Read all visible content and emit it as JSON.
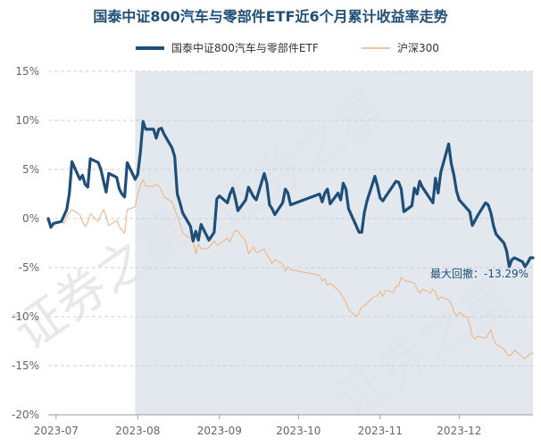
{
  "chart_data": {
    "type": "line",
    "title": "国泰中证800汽车与零部件ETF近6个月累计收益率走势",
    "xlabel": "",
    "ylabel": "",
    "y_unit": "%",
    "ylim": [
      -20,
      15
    ],
    "y_ticks": [
      15,
      10,
      5,
      0,
      -5,
      -10,
      -15,
      -20
    ],
    "y_tick_labels": [
      "15%",
      "10%",
      "5%",
      "0%",
      "-5%",
      "-10%",
      "-15%",
      "-20%"
    ],
    "x_ticks": [
      "2023-07",
      "2023-08",
      "2023-09",
      "2023-10",
      "2023-11",
      "2023-12"
    ],
    "x_range": [
      "2023-06-28",
      "2023-12-29"
    ],
    "grid": "horizontal-dashed",
    "legend_position": "top",
    "drawdown_shading": {
      "start": "2023-07-31",
      "end": "2023-12-29",
      "color": "#dde4ea"
    },
    "annotation": {
      "text": "最大回撤：-13.29%",
      "anchor_date": "2023-12-27",
      "anchor_value": -5.2
    },
    "watermark": "证券之星",
    "series": [
      {
        "name": "国泰中证800汽车与零部件ETF",
        "color": "#1f4e79",
        "line_width": 3.2,
        "points": [
          [
            "2023-06-28",
            0.0
          ],
          [
            "2023-06-29",
            -0.9
          ],
          [
            "2023-06-30",
            -0.5
          ],
          [
            "2023-07-03",
            -0.3
          ],
          [
            "2023-07-04",
            0.3
          ],
          [
            "2023-07-05",
            0.9
          ],
          [
            "2023-07-06",
            2.5
          ],
          [
            "2023-07-07",
            5.8
          ],
          [
            "2023-07-10",
            4.0
          ],
          [
            "2023-07-11",
            4.4
          ],
          [
            "2023-07-12",
            3.5
          ],
          [
            "2023-07-13",
            3.2
          ],
          [
            "2023-07-14",
            6.1
          ],
          [
            "2023-07-17",
            5.7
          ],
          [
            "2023-07-18",
            5.0
          ],
          [
            "2023-07-19",
            3.8
          ],
          [
            "2023-07-20",
            2.7
          ],
          [
            "2023-07-21",
            4.6
          ],
          [
            "2023-07-24",
            4.2
          ],
          [
            "2023-07-25",
            3.0
          ],
          [
            "2023-07-26",
            2.5
          ],
          [
            "2023-07-27",
            2.2
          ],
          [
            "2023-07-28",
            5.7
          ],
          [
            "2023-07-31",
            4.0
          ],
          [
            "2023-08-01",
            4.5
          ],
          [
            "2023-08-02",
            6.8
          ],
          [
            "2023-08-03",
            9.9
          ],
          [
            "2023-08-04",
            9.1
          ],
          [
            "2023-08-07",
            9.1
          ],
          [
            "2023-08-08",
            8.2
          ],
          [
            "2023-08-09",
            9.1
          ],
          [
            "2023-08-10",
            9.2
          ],
          [
            "2023-08-11",
            8.6
          ],
          [
            "2023-08-14",
            7.2
          ],
          [
            "2023-08-15",
            6.3
          ],
          [
            "2023-08-16",
            2.5
          ],
          [
            "2023-08-17",
            1.6
          ],
          [
            "2023-08-18",
            0.6
          ],
          [
            "2023-08-21",
            -0.8
          ],
          [
            "2023-08-22",
            -2.3
          ],
          [
            "2023-08-23",
            -1.3
          ],
          [
            "2023-08-24",
            -2.2
          ],
          [
            "2023-08-25",
            -0.6
          ],
          [
            "2023-08-28",
            -2.2
          ],
          [
            "2023-08-29",
            -1.8
          ],
          [
            "2023-08-30",
            -1.4
          ],
          [
            "2023-08-31",
            2.0
          ],
          [
            "2023-09-01",
            2.3
          ],
          [
            "2023-09-04",
            1.6
          ],
          [
            "2023-09-05",
            2.5
          ],
          [
            "2023-09-06",
            3.1
          ],
          [
            "2023-09-07",
            2.1
          ],
          [
            "2023-09-08",
            0.8
          ],
          [
            "2023-09-11",
            1.9
          ],
          [
            "2023-09-12",
            3.2
          ],
          [
            "2023-09-13",
            2.7
          ],
          [
            "2023-09-14",
            2.2
          ],
          [
            "2023-09-15",
            1.9
          ],
          [
            "2023-09-18",
            4.6
          ],
          [
            "2023-09-19",
            3.6
          ],
          [
            "2023-09-20",
            1.4
          ],
          [
            "2023-09-21",
            1.0
          ],
          [
            "2023-09-22",
            0.4
          ],
          [
            "2023-09-25",
            1.6
          ],
          [
            "2023-09-26",
            3.0
          ],
          [
            "2023-09-27",
            2.6
          ],
          [
            "2023-09-28",
            1.4
          ],
          [
            "2023-10-09",
            2.5
          ],
          [
            "2023-10-10",
            1.7
          ],
          [
            "2023-10-11",
            2.6
          ],
          [
            "2023-10-12",
            3.0
          ],
          [
            "2023-10-13",
            1.5
          ],
          [
            "2023-10-16",
            2.6
          ],
          [
            "2023-10-17",
            1.9
          ],
          [
            "2023-10-18",
            3.6
          ],
          [
            "2023-10-19",
            3.0
          ],
          [
            "2023-10-20",
            1.0
          ],
          [
            "2023-10-23",
            -0.8
          ],
          [
            "2023-10-24",
            -1.4
          ],
          [
            "2023-10-25",
            -1.4
          ],
          [
            "2023-10-26",
            0.6
          ],
          [
            "2023-10-27",
            1.8
          ],
          [
            "2023-10-30",
            4.3
          ],
          [
            "2023-10-31",
            3.3
          ],
          [
            "2023-11-01",
            2.1
          ],
          [
            "2023-11-02",
            1.8
          ],
          [
            "2023-11-03",
            2.2
          ],
          [
            "2023-11-06",
            3.4
          ],
          [
            "2023-11-07",
            3.8
          ],
          [
            "2023-11-08",
            3.7
          ],
          [
            "2023-11-09",
            3.0
          ],
          [
            "2023-11-10",
            0.7
          ],
          [
            "2023-11-13",
            1.3
          ],
          [
            "2023-11-14",
            3.1
          ],
          [
            "2023-11-15",
            2.5
          ],
          [
            "2023-11-16",
            3.8
          ],
          [
            "2023-11-17",
            3.2
          ],
          [
            "2023-11-20",
            2.0
          ],
          [
            "2023-11-21",
            1.6
          ],
          [
            "2023-11-22",
            4.1
          ],
          [
            "2023-11-23",
            2.6
          ],
          [
            "2023-11-24",
            4.7
          ],
          [
            "2023-11-27",
            7.6
          ],
          [
            "2023-11-28",
            5.6
          ],
          [
            "2023-11-29",
            4.4
          ],
          [
            "2023-11-30",
            2.8
          ],
          [
            "2023-12-01",
            1.9
          ],
          [
            "2023-12-04",
            1.0
          ],
          [
            "2023-12-05",
            0.7
          ],
          [
            "2023-12-06",
            -0.7
          ],
          [
            "2023-12-07",
            -0.2
          ],
          [
            "2023-12-08",
            0.3
          ],
          [
            "2023-12-11",
            1.6
          ],
          [
            "2023-12-12",
            1.4
          ],
          [
            "2023-12-13",
            0.6
          ],
          [
            "2023-12-14",
            -0.7
          ],
          [
            "2023-12-15",
            -1.6
          ],
          [
            "2023-12-18",
            -2.5
          ],
          [
            "2023-12-19",
            -3.3
          ],
          [
            "2023-12-20",
            -4.9
          ],
          [
            "2023-12-21",
            -4.2
          ],
          [
            "2023-12-22",
            -4.0
          ],
          [
            "2023-12-25",
            -4.4
          ],
          [
            "2023-12-26",
            -4.9
          ],
          [
            "2023-12-27",
            -4.5
          ],
          [
            "2023-12-28",
            -4.0
          ],
          [
            "2023-12-29",
            -4.0
          ]
        ]
      },
      {
        "name": "沪深300",
        "color": "#f2b07e",
        "line_width": 1,
        "points": [
          [
            "2023-06-28",
            0.0
          ],
          [
            "2023-06-29",
            -1.0
          ],
          [
            "2023-06-30",
            -0.4
          ],
          [
            "2023-07-03",
            -0.2
          ],
          [
            "2023-07-04",
            -0.5
          ],
          [
            "2023-07-05",
            0.2
          ],
          [
            "2023-07-06",
            0.6
          ],
          [
            "2023-07-07",
            0.9
          ],
          [
            "2023-07-10",
            0.4
          ],
          [
            "2023-07-11",
            -0.3
          ],
          [
            "2023-07-12",
            -0.8
          ],
          [
            "2023-07-13",
            -0.4
          ],
          [
            "2023-07-14",
            0.5
          ],
          [
            "2023-07-17",
            -0.3
          ],
          [
            "2023-07-18",
            0.4
          ],
          [
            "2023-07-19",
            0.9
          ],
          [
            "2023-07-20",
            0.2
          ],
          [
            "2023-07-21",
            -0.7
          ],
          [
            "2023-07-24",
            -0.2
          ],
          [
            "2023-07-25",
            -0.8
          ],
          [
            "2023-07-26",
            -1.2
          ],
          [
            "2023-07-27",
            -1.5
          ],
          [
            "2023-07-28",
            0.9
          ],
          [
            "2023-07-31",
            1.2
          ],
          [
            "2023-08-01",
            2.5
          ],
          [
            "2023-08-02",
            3.4
          ],
          [
            "2023-08-03",
            4.0
          ],
          [
            "2023-08-04",
            3.3
          ],
          [
            "2023-08-07",
            3.3
          ],
          [
            "2023-08-08",
            3.5
          ],
          [
            "2023-08-09",
            3.3
          ],
          [
            "2023-08-10",
            2.9
          ],
          [
            "2023-08-11",
            2.2
          ],
          [
            "2023-08-14",
            1.7
          ],
          [
            "2023-08-15",
            0.9
          ],
          [
            "2023-08-16",
            0.3
          ],
          [
            "2023-08-17",
            -0.5
          ],
          [
            "2023-08-18",
            -1.5
          ],
          [
            "2023-08-21",
            -2.0
          ],
          [
            "2023-08-22",
            -2.3
          ],
          [
            "2023-08-23",
            -3.6
          ],
          [
            "2023-08-24",
            -2.6
          ],
          [
            "2023-08-25",
            -3.1
          ],
          [
            "2023-08-28",
            -3.0
          ],
          [
            "2023-08-29",
            -2.6
          ],
          [
            "2023-08-30",
            -2.3
          ],
          [
            "2023-08-31",
            -2.7
          ],
          [
            "2023-09-01",
            -2.6
          ],
          [
            "2023-09-04",
            -2.0
          ],
          [
            "2023-09-05",
            -2.4
          ],
          [
            "2023-09-06",
            -1.7
          ],
          [
            "2023-09-07",
            -1.2
          ],
          [
            "2023-09-08",
            -1.3
          ],
          [
            "2023-09-11",
            -2.3
          ],
          [
            "2023-09-12",
            -3.6
          ],
          [
            "2023-09-13",
            -3.2
          ],
          [
            "2023-09-14",
            -2.9
          ],
          [
            "2023-09-15",
            -3.5
          ],
          [
            "2023-09-18",
            -3.1
          ],
          [
            "2023-09-19",
            -3.7
          ],
          [
            "2023-09-20",
            -4.1
          ],
          [
            "2023-09-21",
            -4.6
          ],
          [
            "2023-09-22",
            -4.2
          ],
          [
            "2023-09-25",
            -4.6
          ],
          [
            "2023-09-26",
            -5.4
          ],
          [
            "2023-09-27",
            -4.9
          ],
          [
            "2023-09-28",
            -5.2
          ],
          [
            "2023-10-09",
            -5.8
          ],
          [
            "2023-10-10",
            -6.4
          ],
          [
            "2023-10-11",
            -6.1
          ],
          [
            "2023-10-12",
            -6.8
          ],
          [
            "2023-10-13",
            -6.6
          ],
          [
            "2023-10-16",
            -7.3
          ],
          [
            "2023-10-17",
            -7.6
          ],
          [
            "2023-10-18",
            -8.1
          ],
          [
            "2023-10-19",
            -8.5
          ],
          [
            "2023-10-20",
            -9.3
          ],
          [
            "2023-10-23",
            -10.0
          ],
          [
            "2023-10-24",
            -9.6
          ],
          [
            "2023-10-25",
            -9.0
          ],
          [
            "2023-10-26",
            -8.9
          ],
          [
            "2023-10-27",
            -8.6
          ],
          [
            "2023-10-30",
            -7.9
          ],
          [
            "2023-10-31",
            -7.9
          ],
          [
            "2023-11-01",
            -7.4
          ],
          [
            "2023-11-02",
            -7.9
          ],
          [
            "2023-11-03",
            -7.3
          ],
          [
            "2023-11-06",
            -7.5
          ],
          [
            "2023-11-07",
            -6.9
          ],
          [
            "2023-11-08",
            -6.9
          ],
          [
            "2023-11-09",
            -6.0
          ],
          [
            "2023-11-10",
            -6.3
          ],
          [
            "2023-11-13",
            -6.5
          ],
          [
            "2023-11-14",
            -6.6
          ],
          [
            "2023-11-15",
            -7.2
          ],
          [
            "2023-11-16",
            -7.6
          ],
          [
            "2023-11-17",
            -7.2
          ],
          [
            "2023-11-20",
            -7.6
          ],
          [
            "2023-11-21",
            -7.2
          ],
          [
            "2023-11-22",
            -7.5
          ],
          [
            "2023-11-23",
            -8.3
          ],
          [
            "2023-11-24",
            -8.0
          ],
          [
            "2023-11-27",
            -8.3
          ],
          [
            "2023-11-28",
            -8.7
          ],
          [
            "2023-11-29",
            -9.5
          ],
          [
            "2023-11-30",
            -9.9
          ],
          [
            "2023-12-01",
            -9.6
          ],
          [
            "2023-12-04",
            -10.1
          ],
          [
            "2023-12-05",
            -10.8
          ],
          [
            "2023-12-06",
            -12.0
          ],
          [
            "2023-12-07",
            -12.3
          ],
          [
            "2023-12-08",
            -12.0
          ],
          [
            "2023-12-11",
            -12.2
          ],
          [
            "2023-12-12",
            -11.8
          ],
          [
            "2023-12-13",
            -11.3
          ],
          [
            "2023-12-14",
            -12.3
          ],
          [
            "2023-12-15",
            -12.8
          ],
          [
            "2023-12-18",
            -13.3
          ],
          [
            "2023-12-19",
            -13.8
          ],
          [
            "2023-12-20",
            -14.0
          ],
          [
            "2023-12-21",
            -13.8
          ],
          [
            "2023-12-22",
            -13.4
          ],
          [
            "2023-12-25",
            -14.1
          ],
          [
            "2023-12-26",
            -14.3
          ],
          [
            "2023-12-27",
            -14.0
          ],
          [
            "2023-12-28",
            -13.8
          ],
          [
            "2023-12-29",
            -13.7
          ]
        ]
      }
    ]
  }
}
